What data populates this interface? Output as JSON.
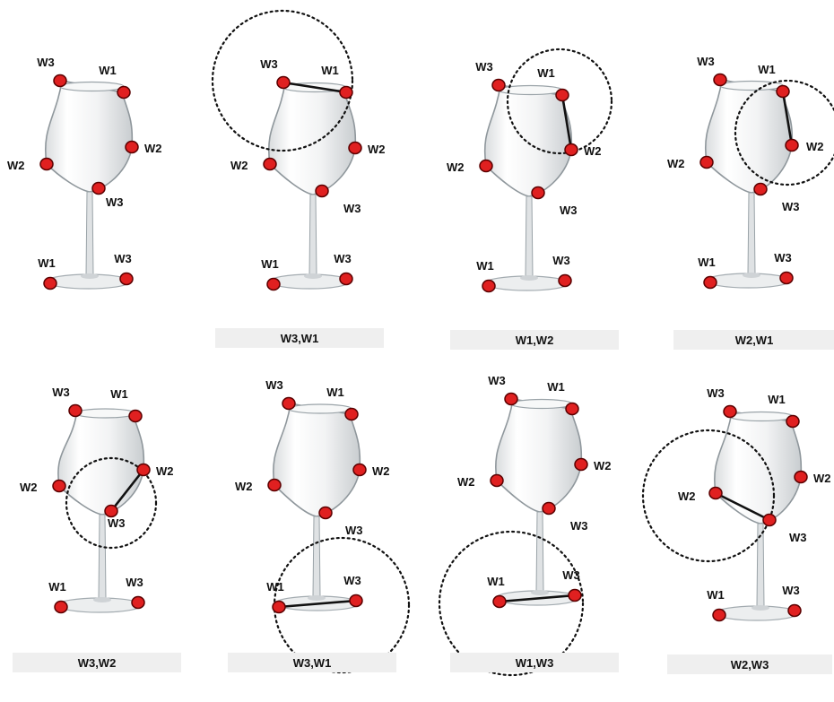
{
  "panels": [
    {
      "caption": "",
      "labels": [
        "W3",
        "W1",
        "W2",
        "W2",
        "W3",
        "W1",
        "W3"
      ]
    },
    {
      "caption": "W3,W1",
      "labels": [
        "W3",
        "W1",
        "W2",
        "W2",
        "W3",
        "W1",
        "W3"
      ]
    },
    {
      "caption": "W1,W2",
      "labels": [
        "W3",
        "W1",
        "W2",
        "W2",
        "W3",
        "W1",
        "W3"
      ]
    },
    {
      "caption": "W2,W1",
      "labels": [
        "W3",
        "W1",
        "W2",
        "W2",
        "W3",
        "W1",
        "W3"
      ]
    },
    {
      "caption": "W3,W2",
      "labels": [
        "W3",
        "W1",
        "W2",
        "W2",
        "W3",
        "W1",
        "W3"
      ]
    },
    {
      "caption": "W3,W1",
      "labels": [
        "W3",
        "W1",
        "W2",
        "W2",
        "W3",
        "W1",
        "W3"
      ]
    },
    {
      "caption": "W1,W3",
      "labels": [
        "W3",
        "W1",
        "W2",
        "W2",
        "W3",
        "W1",
        "W3"
      ]
    },
    {
      "caption": "W2,W3",
      "labels": [
        "W3",
        "W1",
        "W2",
        "W2",
        "W3",
        "W1",
        "W3"
      ]
    }
  ],
  "colors": {
    "marker": "#e02020",
    "glass": "#9aa3a8"
  }
}
